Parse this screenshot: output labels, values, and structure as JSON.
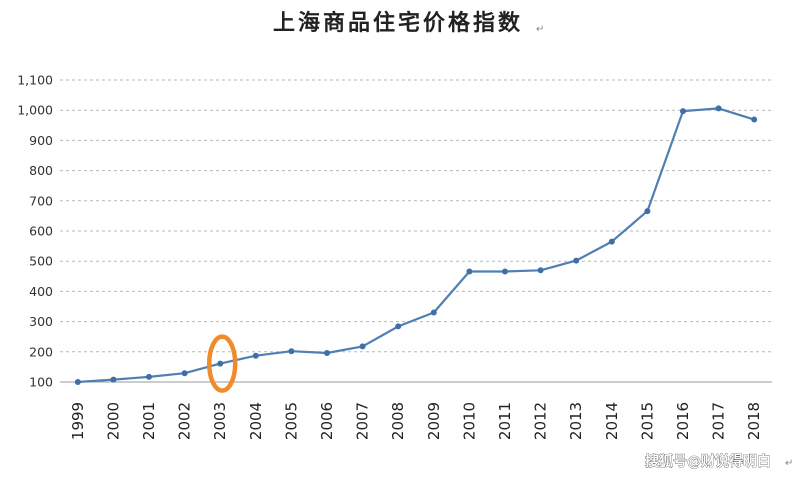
{
  "chart_data": {
    "type": "line",
    "title": "上海商品住宅价格指数",
    "title_mark": "↵",
    "xlabel": "",
    "ylabel": "",
    "ylim": [
      100,
      1100
    ],
    "yticks": [
      100,
      200,
      300,
      400,
      500,
      600,
      700,
      800,
      900,
      1000,
      1100
    ],
    "ytick_labels": [
      "100",
      "200",
      "300",
      "400",
      "500",
      "600",
      "700",
      "800",
      "900",
      "1,000",
      "1,100"
    ],
    "grid": true,
    "categories": [
      "1999",
      "2000",
      "2001",
      "2002",
      "2003",
      "2004",
      "2005",
      "2006",
      "2007",
      "2008",
      "2009",
      "2010",
      "2011",
      "2012",
      "2013",
      "2014",
      "2015",
      "2016",
      "2017",
      "2018"
    ],
    "values": [
      100,
      108,
      117,
      129,
      161,
      187,
      202,
      196,
      218,
      284,
      330,
      466,
      466,
      470,
      502,
      565,
      666,
      997,
      1006,
      969
    ],
    "line_color": "#4f7fb3",
    "highlight_category": "2003",
    "highlight_color": "#f08a2a"
  },
  "watermark": {
    "text": "搜狐号@财说得明白",
    "mark": "↵"
  }
}
